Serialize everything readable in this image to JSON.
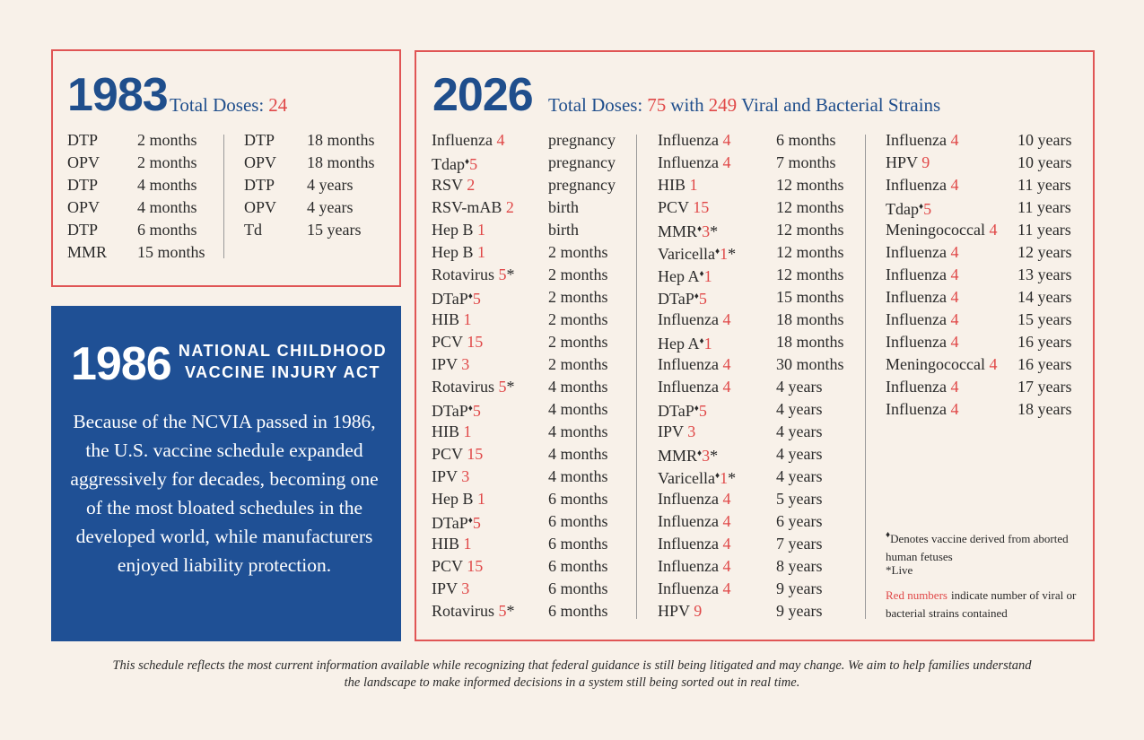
{
  "schedule_1983": {
    "year": "1983",
    "total_label": "Total Doses:",
    "total": "24",
    "columns": [
      [
        {
          "name": "DTP",
          "age": "2 months"
        },
        {
          "name": "OPV",
          "age": "2 months"
        },
        {
          "name": "DTP",
          "age": "4 months"
        },
        {
          "name": "OPV",
          "age": "4 months"
        },
        {
          "name": "DTP",
          "age": "6 months"
        },
        {
          "name": "MMR",
          "age": "15 months"
        }
      ],
      [
        {
          "name": "DTP",
          "age": "18 months"
        },
        {
          "name": "OPV",
          "age": "18 months"
        },
        {
          "name": "DTP",
          "age": "4 years"
        },
        {
          "name": "OPV",
          "age": "4 years"
        },
        {
          "name": "Td",
          "age": "15 years"
        }
      ]
    ]
  },
  "act_1986": {
    "year": "1986",
    "title_lines": [
      "NATIONAL CHILDHOOD",
      "VACCINE INJURY ACT"
    ],
    "body": "Because of the NCVIA passed in 1986, the U.S. vaccine schedule expanded aggressively for decades, becoming one of the most bloated schedules in the developed world, while manufacturers enjoyed liability protection."
  },
  "schedule_2026": {
    "year": "2026",
    "total_label": "Total Doses:",
    "total": "75",
    "with": "with",
    "strains_total": "249",
    "strains_label": "Viral and Bacterial Strains",
    "columns": [
      [
        {
          "name": "Influenza",
          "strains": 4,
          "age": "pregnancy"
        },
        {
          "name": "Tdap",
          "mark": "♦",
          "strains": 5,
          "age": "pregnancy"
        },
        {
          "name": "RSV",
          "strains": 2,
          "age": "pregnancy"
        },
        {
          "name": "RSV-mAB",
          "strains": 2,
          "age": "birth"
        },
        {
          "name": "Hep B",
          "strains": 1,
          "age": "birth"
        },
        {
          "name": "Hep B",
          "strains": 1,
          "age": "2 months"
        },
        {
          "name": "Rotavirus",
          "strains": 5,
          "live": "*",
          "age": "2 months"
        },
        {
          "name": "DTaP",
          "mark": "♦",
          "strains": 5,
          "age": "2 months"
        },
        {
          "name": "HIB",
          "strains": 1,
          "age": "2 months"
        },
        {
          "name": "PCV",
          "strains": 15,
          "age": "2 months"
        },
        {
          "name": "IPV",
          "strains": 3,
          "age": "2 months"
        },
        {
          "name": "Rotavirus",
          "strains": 5,
          "live": "*",
          "age": "4 months"
        },
        {
          "name": "DTaP",
          "mark": "♦",
          "strains": 5,
          "age": "4 months"
        },
        {
          "name": "HIB",
          "strains": 1,
          "age": "4 months"
        },
        {
          "name": "PCV",
          "strains": 15,
          "age": "4 months"
        },
        {
          "name": "IPV",
          "strains": 3,
          "age": "4 months"
        },
        {
          "name": "Hep B",
          "strains": 1,
          "age": "6 months"
        },
        {
          "name": "DTaP",
          "mark": "♦",
          "strains": 5,
          "age": "6 months"
        },
        {
          "name": "HIB",
          "strains": 1,
          "age": "6 months"
        },
        {
          "name": "PCV",
          "strains": 15,
          "age": "6 months"
        },
        {
          "name": "IPV",
          "strains": 3,
          "age": "6 months"
        },
        {
          "name": "Rotavirus",
          "strains": 5,
          "live": "*",
          "age": "6 months"
        }
      ],
      [
        {
          "name": "Influenza",
          "strains": 4,
          "age": "6 months"
        },
        {
          "name": "Influenza",
          "strains": 4,
          "age": "7 months"
        },
        {
          "name": "HIB",
          "strains": 1,
          "age": "12 months"
        },
        {
          "name": "PCV",
          "strains": 15,
          "age": "12 months"
        },
        {
          "name": "MMR",
          "mark": "♦",
          "strains": 3,
          "live": "*",
          "age": "12 months"
        },
        {
          "name": "Varicella",
          "mark": "♦",
          "strains": 1,
          "live": "*",
          "age": "12 months"
        },
        {
          "name": "Hep A",
          "mark": "♦",
          "strains": 1,
          "age": "12 months"
        },
        {
          "name": "DTaP",
          "mark": "♦",
          "strains": 5,
          "age": "15 months"
        },
        {
          "name": "Influenza",
          "strains": 4,
          "age": "18 months"
        },
        {
          "name": "Hep A",
          "mark": "♦",
          "strains": 1,
          "age": "18 months"
        },
        {
          "name": "Influenza",
          "strains": 4,
          "age": "30 months"
        },
        {
          "name": "Influenza",
          "strains": 4,
          "age": "4 years"
        },
        {
          "name": "DTaP",
          "mark": "♦",
          "strains": 5,
          "age": "4 years"
        },
        {
          "name": "IPV",
          "strains": 3,
          "age": "4 years"
        },
        {
          "name": "MMR",
          "mark": "♦",
          "strains": 3,
          "live": "*",
          "age": "4 years"
        },
        {
          "name": "Varicella",
          "mark": "♦",
          "strains": 1,
          "live": "*",
          "age": "4 years"
        },
        {
          "name": "Influenza",
          "strains": 4,
          "age": "5 years"
        },
        {
          "name": "Influenza",
          "strains": 4,
          "age": "6 years"
        },
        {
          "name": "Influenza",
          "strains": 4,
          "age": "7 years"
        },
        {
          "name": "Influenza",
          "strains": 4,
          "age": "8 years"
        },
        {
          "name": "Influenza",
          "strains": 4,
          "age": "9 years"
        },
        {
          "name": "HPV",
          "strains": 9,
          "age": "9 years"
        }
      ],
      [
        {
          "name": "Influenza",
          "strains": 4,
          "age": "10 years"
        },
        {
          "name": "HPV",
          "strains": 9,
          "age": "10 years"
        },
        {
          "name": "Influenza",
          "strains": 4,
          "age": "11 years"
        },
        {
          "name": "Tdap",
          "mark": "♦",
          "strains": 5,
          "age": "11 years"
        },
        {
          "name": "Meningococcal",
          "strains": 4,
          "age": "11 years"
        },
        {
          "name": "Influenza",
          "strains": 4,
          "age": "12 years"
        },
        {
          "name": "Influenza",
          "strains": 4,
          "age": "13 years"
        },
        {
          "name": "Influenza",
          "strains": 4,
          "age": "14 years"
        },
        {
          "name": "Influenza",
          "strains": 4,
          "age": "15 years"
        },
        {
          "name": "Influenza",
          "strains": 4,
          "age": "16 years"
        },
        {
          "name": "Meningococcal",
          "strains": 4,
          "age": "16 years"
        },
        {
          "name": "Influenza",
          "strains": 4,
          "age": "17 years"
        },
        {
          "name": "Influenza",
          "strains": 4,
          "age": "18 years"
        }
      ]
    ],
    "legend": {
      "mark": "♦",
      "mark_text": "Denotes vaccine derived from aborted human fetuses",
      "live": "*Live",
      "red": "Red numbers",
      "red_text": "indicate number of viral or bacterial strains contained"
    }
  },
  "footer": {
    "lines": [
      "This schedule reflects the most current information available while recognizing that federal guidance is still being litigated and may change. We aim to help families understand",
      "the landscape to make informed decisions in a system still being sorted out in real time."
    ]
  }
}
